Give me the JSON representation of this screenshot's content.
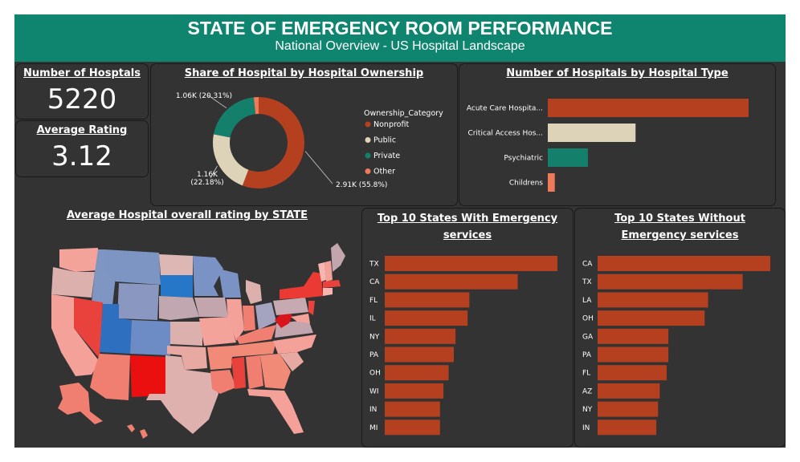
{
  "header": {
    "title": "STATE OF EMERGENCY ROOM PERFORMANCE",
    "subtitle": "National Overview - US Hospital Landscape"
  },
  "kpis": {
    "hospitals": {
      "label": "Number of Hosptals",
      "value": "5220"
    },
    "rating": {
      "label": "Average Rating",
      "value": "3.12"
    }
  },
  "colors": {
    "accent": "#0f8570",
    "bar": "#b5401f",
    "nonprofit": "#b5401f",
    "public": "#dcd3b8",
    "private": "#14806c",
    "other": "#ef7a5a",
    "background": "#333333"
  },
  "map": {
    "title": "Average Hospital overall rating by STATE"
  },
  "chart_data": [
    {
      "type": "pie",
      "title": "Share of Hospital by Hospital Ownership",
      "legend_title": "Ownership_Category",
      "legend_position": "right",
      "slices": [
        {
          "label": "Nonprofit",
          "value": 2.91,
          "data_label": "2.91K (55.8%)",
          "color": "#b5401f"
        },
        {
          "label": "Public",
          "value": 1.16,
          "data_label": "1.16K (22.18%)",
          "color": "#dcd3b8"
        },
        {
          "label": "Private",
          "value": 1.06,
          "data_label": "1.06K (20.31%)",
          "color": "#14806c"
        },
        {
          "label": "Other",
          "value": 0.09,
          "data_label": "",
          "color": "#ef7a5a"
        }
      ]
    },
    {
      "type": "bar",
      "title": "Number of Hospitals by Hospital Type",
      "categories": [
        "Acute Care Hospita...",
        "Critical Access Hos...",
        "Psychiatric",
        "Childrens"
      ],
      "values": [
        3116,
        1362,
        622,
        109
      ],
      "colors": [
        "#b5401f",
        "#dcd3b8",
        "#14806c",
        "#ef7a5a"
      ],
      "xlim": [
        0,
        3116
      ]
    },
    {
      "type": "bar",
      "title": "Top 10 States With Emergency services",
      "categories": [
        "TX",
        "CA",
        "FL",
        "IL",
        "NY",
        "PA",
        "OH",
        "WI",
        "IN",
        "MI"
      ],
      "values": [
        100,
        77,
        49,
        48,
        41,
        40,
        37,
        34,
        32,
        32
      ],
      "xlim": [
        0,
        100
      ]
    },
    {
      "type": "bar",
      "title": "Top 10 States Without Emergency services",
      "categories": [
        "CA",
        "TX",
        "LA",
        "OH",
        "GA",
        "PA",
        "FL",
        "AZ",
        "NY",
        "IN"
      ],
      "values": [
        100,
        84,
        64,
        62,
        41,
        41,
        40,
        36,
        35,
        34
      ],
      "xlim": [
        0,
        100
      ]
    }
  ]
}
